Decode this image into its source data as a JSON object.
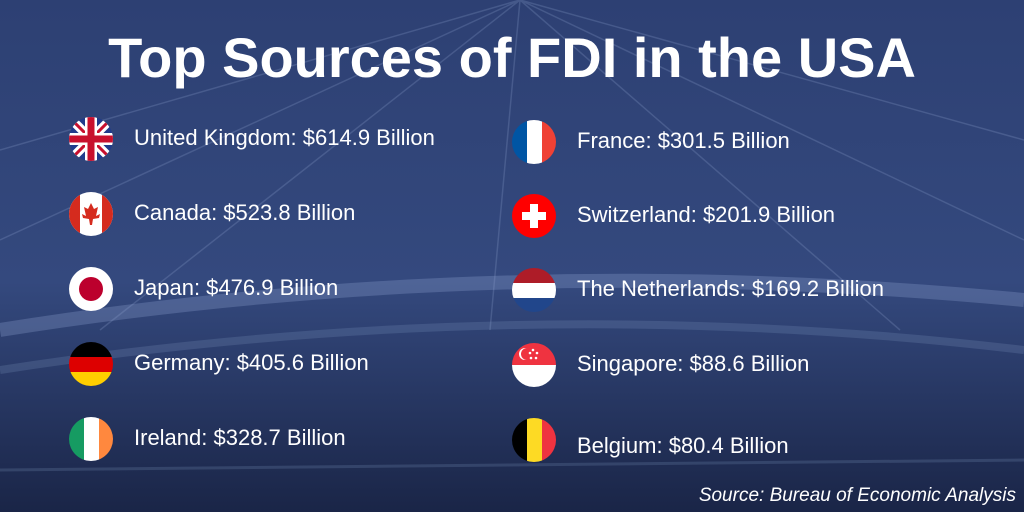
{
  "title": "Top Sources of FDI in the USA",
  "items": [
    "United Kingdom: $614.9 Billion",
    "Canada: $523.8 Billion",
    "Japan: $476.9 Billion",
    "Germany: $405.6 Billion",
    "Ireland: $328.7 Billion",
    "France: $301.5 Billion",
    "Switzerland: $201.9 Billion",
    "The Netherlands: $169.2 Billion",
    "Singapore: $88.6 Billion",
    "Belgium: $80.4 Billion"
  ],
  "source": "Source: Bureau of Economic Analysis"
}
